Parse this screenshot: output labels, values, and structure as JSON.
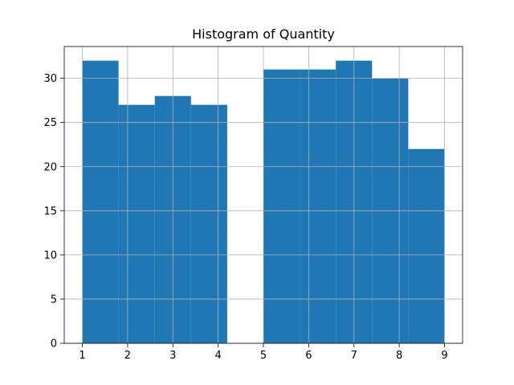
{
  "chart_data": {
    "type": "bar",
    "title": "Histogram of Quantity",
    "xlabel": "",
    "ylabel": "",
    "bins": [
      {
        "x0": 1.0,
        "x1": 1.8,
        "count": 32
      },
      {
        "x0": 1.8,
        "x1": 2.6,
        "count": 27
      },
      {
        "x0": 2.6,
        "x1": 3.4,
        "count": 28
      },
      {
        "x0": 3.4,
        "x1": 4.2,
        "count": 27
      },
      {
        "x0": 4.2,
        "x1": 5.0,
        "count": 0
      },
      {
        "x0": 5.0,
        "x1": 5.8,
        "count": 31
      },
      {
        "x0": 5.8,
        "x1": 6.6,
        "count": 31
      },
      {
        "x0": 6.6,
        "x1": 7.4,
        "count": 32
      },
      {
        "x0": 7.4,
        "x1": 8.2,
        "count": 30
      },
      {
        "x0": 8.2,
        "x1": 9.0,
        "count": 22
      }
    ],
    "xlim": [
      0.6,
      9.4
    ],
    "ylim": [
      0,
      33.6
    ],
    "xticks": [
      1,
      2,
      3,
      4,
      5,
      6,
      7,
      8,
      9
    ],
    "xtick_labels": [
      "1",
      "2",
      "3",
      "4",
      "5",
      "6",
      "7",
      "8",
      "9"
    ],
    "yticks": [
      0,
      5,
      10,
      15,
      20,
      25,
      30
    ],
    "ytick_labels": [
      "0",
      "5",
      "10",
      "15",
      "20",
      "25",
      "30"
    ],
    "grid": true,
    "bar_color": "#1f77b4",
    "grid_color": "#b0b0b0"
  }
}
